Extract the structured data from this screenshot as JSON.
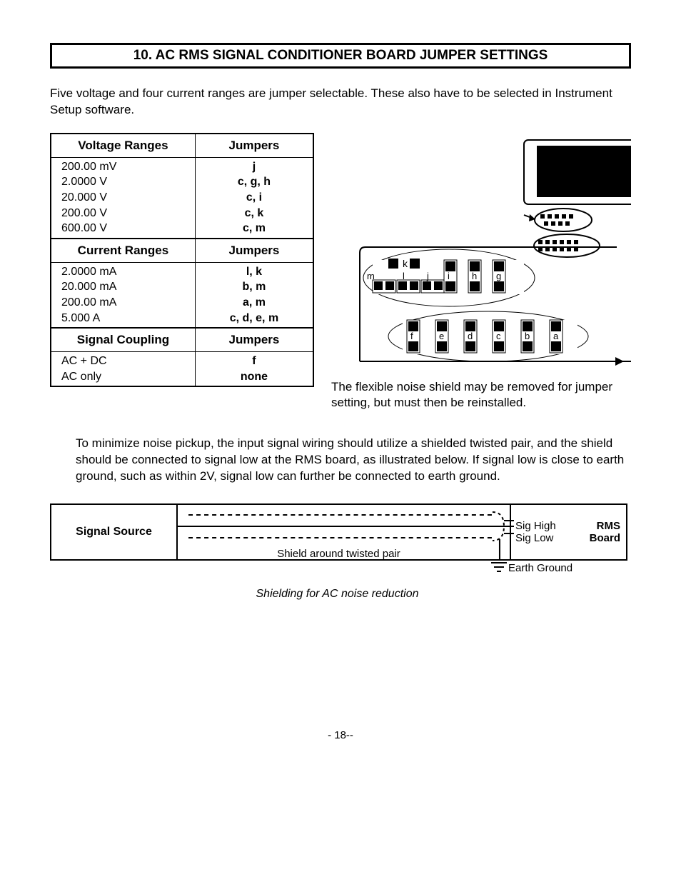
{
  "section_title": "10.  AC RMS SIGNAL CONDITIONER BOARD JUMPER SETTINGS",
  "intro": "Five voltage and four current ranges are jumper selectable. These also have to be selected in Instrument Setup software.",
  "table": {
    "headers": {
      "voltage": "Voltage Ranges",
      "current": "Current Ranges",
      "coupling": "Signal Coupling",
      "jumpers": "Jumpers"
    },
    "voltage_rows": [
      {
        "range": "200.00 mV",
        "jumpers": "j"
      },
      {
        "range": "2.0000 V",
        "jumpers": "c, g, h"
      },
      {
        "range": "20.000 V",
        "jumpers": "c, i"
      },
      {
        "range": "200.00 V",
        "jumpers": "c, k"
      },
      {
        "range": "600.00 V",
        "jumpers": "c, m"
      }
    ],
    "current_rows": [
      {
        "range": "2.0000 mA",
        "jumpers": "l, k"
      },
      {
        "range": "20.000 mA",
        "jumpers": "b, m"
      },
      {
        "range": "200.00 mA",
        "jumpers": "a, m"
      },
      {
        "range": "5.000 A",
        "jumpers": "c, d, e, m"
      }
    ],
    "coupling_rows": [
      {
        "range": "AC + DC",
        "jumpers": "f"
      },
      {
        "range": "AC only",
        "jumpers": "none"
      }
    ]
  },
  "board": {
    "outline_color": "#000000",
    "fill_color": "#000000",
    "bg": "#ffffff",
    "bottom_jumpers": [
      "f",
      "e",
      "d",
      "c",
      "b",
      "a"
    ],
    "top_jumpers_left": [
      "m",
      "l",
      "j"
    ],
    "top_jumpers_right": [
      "i",
      "h",
      "g"
    ],
    "top_label_k": "k",
    "font_size": 13
  },
  "shield_note": "The flexible noise shield may be removed for jumper setting, but must then be reinstalled.",
  "body_para": "To minimize noise pickup, the input signal wiring should utilize a shielded twisted pair, and the shield should be connected to signal low at the RMS board, as illustrated below. If signal low is close to earth ground, such as within 2V, signal low can further be connected to earth ground.",
  "diagram": {
    "signal_source": "Signal Source",
    "sig_high": "Sig High",
    "sig_low": "Sig Low",
    "rms": "RMS",
    "board": "Board",
    "shield_label": "Shield around twisted pair",
    "earth": "Earth Ground",
    "caption": "Shielding for AC noise reduction"
  },
  "page_number": "- 18--"
}
